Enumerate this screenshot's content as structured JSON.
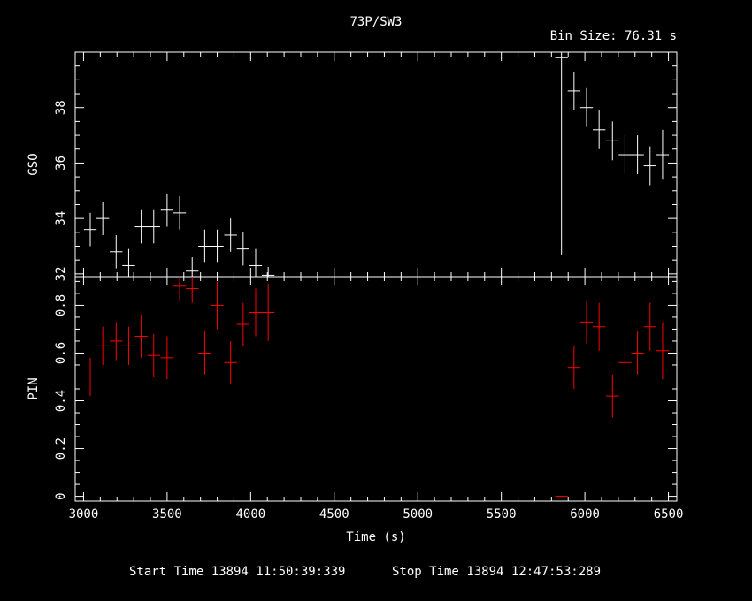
{
  "chart_data": {
    "type": "scatter",
    "title": "73P/SW3",
    "bin_label": "Bin Size: 76.31 s",
    "xlabel": "Time (s)",
    "xlim": [
      2950,
      6550
    ],
    "x_ticks": [
      "3000",
      "3500",
      "4000",
      "4500",
      "5000",
      "5500",
      "6000",
      "6500"
    ],
    "footer": {
      "start": "Start Time 13894 11:50:39:339",
      "stop": "Stop Time 13894 12:47:53:289"
    },
    "colors": {
      "gso": "#ffffff",
      "pin": "#ff0000"
    },
    "panels": [
      {
        "name": "gso",
        "ylabel": "GSO",
        "ylim": [
          31.9,
          40.0
        ],
        "y_ticks": [
          "32",
          "34",
          "36",
          "38"
        ],
        "xerr": 38,
        "points": [
          [
            3040,
            33.6,
            0.6
          ],
          [
            3115,
            34.0,
            0.6
          ],
          [
            3195,
            32.8,
            0.6
          ],
          [
            3270,
            32.3,
            0.6
          ],
          [
            3345,
            33.7,
            0.6
          ],
          [
            3420,
            33.7,
            0.6
          ],
          [
            3500,
            34.3,
            0.6
          ],
          [
            3575,
            34.2,
            0.6
          ],
          [
            3650,
            32.1,
            0.5
          ],
          [
            3725,
            33.0,
            0.6
          ],
          [
            3800,
            33.0,
            0.6
          ],
          [
            3880,
            33.4,
            0.6
          ],
          [
            3955,
            32.9,
            0.6
          ],
          [
            4030,
            32.3,
            0.6
          ],
          [
            4105,
            31.95,
            0.3
          ],
          [
            5860,
            39.8,
            7.1
          ],
          [
            5935,
            38.6,
            0.7
          ],
          [
            6010,
            38.0,
            0.7
          ],
          [
            6085,
            37.2,
            0.7
          ],
          [
            6165,
            36.8,
            0.7
          ],
          [
            6240,
            36.3,
            0.7
          ],
          [
            6315,
            36.3,
            0.7
          ],
          [
            6390,
            35.9,
            0.7
          ],
          [
            6465,
            36.3,
            0.9
          ]
        ]
      },
      {
        "name": "pin",
        "ylabel": "PIN",
        "ylim": [
          -0.02,
          0.92
        ],
        "y_ticks": [
          "0",
          "0.2",
          "0.4",
          "0.6",
          "0.8"
        ],
        "xerr": 38,
        "points": [
          [
            3040,
            0.5,
            0.08
          ],
          [
            3115,
            0.63,
            0.08
          ],
          [
            3195,
            0.65,
            0.08
          ],
          [
            3270,
            0.63,
            0.08
          ],
          [
            3345,
            0.67,
            0.09
          ],
          [
            3420,
            0.59,
            0.09
          ],
          [
            3500,
            0.58,
            0.09
          ],
          [
            3575,
            0.88,
            0.06
          ],
          [
            3650,
            0.87,
            0.06
          ],
          [
            3725,
            0.6,
            0.09
          ],
          [
            3800,
            0.8,
            0.1
          ],
          [
            3880,
            0.56,
            0.09
          ],
          [
            3955,
            0.72,
            0.09
          ],
          [
            4030,
            0.77,
            0.1
          ],
          [
            4105,
            0.77,
            0.12
          ],
          [
            5860,
            0.0,
            0.0
          ],
          [
            5935,
            0.54,
            0.09
          ],
          [
            6010,
            0.73,
            0.09
          ],
          [
            6085,
            0.71,
            0.1
          ],
          [
            6165,
            0.42,
            0.09
          ],
          [
            6240,
            0.56,
            0.09
          ],
          [
            6315,
            0.6,
            0.09
          ],
          [
            6390,
            0.71,
            0.1
          ],
          [
            6465,
            0.61,
            0.12
          ]
        ]
      }
    ]
  }
}
